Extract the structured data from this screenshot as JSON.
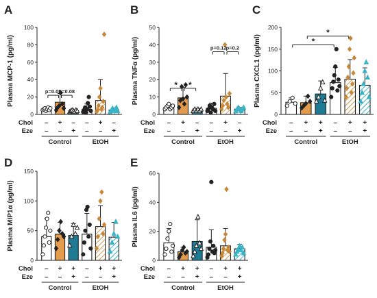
{
  "figure": {
    "row_labels": [
      "Chol",
      "Eze"
    ],
    "group_labels": [
      "Control",
      "EtOH"
    ],
    "colors": {
      "veh_control": "#ffffff",
      "chol": "#e39b4e",
      "chol_eze": "#1f7a93",
      "etoh_veh": "#ffffff",
      "etoh_chol": "#d39c4f",
      "etoh_chol_eze": "#3ab3c6",
      "outline": "#222222"
    },
    "patterns": {
      "etoh_chol": "diagonal-hatch-orange",
      "etoh_chol_eze": "diagonal-hatch-teal"
    }
  },
  "chart_data": [
    {
      "panel": "A",
      "type": "bar",
      "ylabel": "Plasma MCP-1 (pg/ml)",
      "ylim": [
        0,
        100
      ],
      "yticks": [
        0,
        20,
        40,
        60,
        80,
        100
      ],
      "chol": [
        "–",
        "+",
        "–",
        "–",
        "+",
        "–"
      ],
      "eze": [
        "–",
        "–",
        "+",
        "–",
        "–",
        "+"
      ],
      "series": [
        {
          "name": "Control",
          "cond": "veh",
          "mean": 6,
          "err": 2,
          "points": [
            5,
            6,
            7,
            4,
            6,
            8,
            5,
            7
          ]
        },
        {
          "name": "Control",
          "cond": "chol",
          "mean": 14,
          "err": 10,
          "points": [
            5,
            8,
            10,
            25,
            12,
            7
          ]
        },
        {
          "name": "Control",
          "cond": "chol_eze",
          "mean": 4,
          "err": 1,
          "points": [
            3,
            4,
            5,
            4,
            3,
            5,
            4
          ]
        },
        {
          "name": "EtOH",
          "cond": "veh",
          "mean": 6,
          "err": 6,
          "points": [
            3,
            5,
            8,
            2,
            6,
            13,
            20,
            9,
            4
          ]
        },
        {
          "name": "EtOH",
          "cond": "chol",
          "mean": 16,
          "err": 24,
          "points": [
            3,
            5,
            10,
            20,
            30,
            6,
            8,
            15,
            92
          ]
        },
        {
          "name": "EtOH",
          "cond": "chol_eze",
          "mean": 5,
          "err": 2,
          "points": [
            3,
            5,
            7,
            4,
            6,
            8,
            4
          ]
        }
      ],
      "annotations": [
        {
          "text": "p=0.09",
          "from": 0,
          "to": 1,
          "y": 22
        },
        {
          "text": "p=0.08",
          "from": 1,
          "to": 2,
          "y": 22
        }
      ]
    },
    {
      "panel": "B",
      "type": "bar",
      "ylabel": "Plasma TNFα (pg/ml)",
      "ylim": [
        0,
        50
      ],
      "yticks": [
        0,
        10,
        20,
        30,
        40,
        50
      ],
      "chol": [
        "–",
        "+",
        "–",
        "–",
        "+",
        "–"
      ],
      "eze": [
        "–",
        "–",
        "+",
        "–",
        "–",
        "+"
      ],
      "series": [
        {
          "name": "Control",
          "cond": "veh",
          "mean": 4,
          "err": 1.5,
          "points": [
            3,
            4,
            5,
            6,
            3,
            4,
            5
          ]
        },
        {
          "name": "Control",
          "cond": "chol",
          "mean": 9.5,
          "err": 6,
          "points": [
            4,
            8,
            16,
            9,
            6,
            17,
            10
          ]
        },
        {
          "name": "Control",
          "cond": "chol_eze",
          "mean": 2.5,
          "err": 1,
          "points": [
            2,
            3,
            2,
            3,
            2,
            3
          ]
        },
        {
          "name": "EtOH",
          "cond": "veh",
          "mean": 3.5,
          "err": 3,
          "points": [
            2,
            3,
            5,
            1,
            4,
            3,
            6,
            2
          ]
        },
        {
          "name": "EtOH",
          "cond": "chol",
          "mean": 10.5,
          "err": 13,
          "points": [
            3,
            5,
            8,
            40,
            10,
            6,
            4,
            12
          ]
        },
        {
          "name": "EtOH",
          "cond": "chol_eze",
          "mean": 3,
          "err": 1,
          "points": [
            2,
            3,
            4,
            3,
            2,
            3,
            4
          ]
        }
      ],
      "annotations": [
        {
          "text": "*",
          "from": 0,
          "to": 1,
          "y": 15
        },
        {
          "text": "*",
          "from": 1,
          "to": 2,
          "y": 15
        },
        {
          "text": "p=0.12",
          "from": 3,
          "to": 4,
          "y": 36
        },
        {
          "text": "p=0.2",
          "from": 4,
          "to": 5,
          "y": 36
        }
      ]
    },
    {
      "panel": "C",
      "type": "bar",
      "ylabel": "Plasma CXCL1 (pg/ml)",
      "ylim": [
        0,
        200
      ],
      "yticks": [
        0,
        50,
        100,
        150,
        200
      ],
      "chol": [
        "–",
        "+",
        "+",
        "–",
        "+",
        "+"
      ],
      "eze": [
        "–",
        "–",
        "+",
        "–",
        "–",
        "+"
      ],
      "series": [
        {
          "name": "Control",
          "cond": "veh",
          "mean": 28,
          "err": 10,
          "points": [
            20,
            30,
            38,
            25
          ]
        },
        {
          "name": "Control",
          "cond": "chol",
          "mean": 27,
          "err": 15,
          "points": [
            15,
            20,
            25,
            42,
            30
          ]
        },
        {
          "name": "Control",
          "cond": "chol_eze",
          "mean": 47,
          "err": 30,
          "points": [
            30,
            40,
            60,
            74,
            32
          ]
        },
        {
          "name": "EtOH",
          "cond": "veh",
          "mean": 73,
          "err": 35,
          "points": [
            40,
            60,
            75,
            90,
            110,
            150,
            55,
            80,
            65
          ]
        },
        {
          "name": "EtOH",
          "cond": "chol",
          "mean": 81,
          "err": 45,
          "points": [
            40,
            60,
            85,
            110,
            150,
            175,
            50,
            70,
            95,
            130
          ]
        },
        {
          "name": "EtOH",
          "cond": "chol_eze",
          "mean": 67,
          "err": 40,
          "points": [
            30,
            50,
            70,
            100,
            120,
            85,
            40
          ]
        }
      ],
      "annotations": [
        {
          "text": "*",
          "from": 1,
          "to": 4,
          "y": 180
        },
        {
          "text": "*",
          "from": 0,
          "to": 3,
          "y": 160
        }
      ]
    },
    {
      "panel": "D",
      "type": "bar",
      "ylabel": "Plasma MIP1α (pg/ml)",
      "ylim": [
        0,
        150
      ],
      "yticks": [
        0,
        50,
        100,
        150
      ],
      "chol": [
        "–",
        "+",
        "+",
        "–",
        "+",
        "+"
      ],
      "eze": [
        "–",
        "–",
        "+",
        "–",
        "–",
        "+"
      ],
      "series": [
        {
          "name": "Control",
          "cond": "veh",
          "mean": 40,
          "err": 30,
          "points": [
            10,
            25,
            40,
            55,
            70,
            80,
            30,
            50
          ]
        },
        {
          "name": "Control",
          "cond": "chol",
          "mean": 44,
          "err": 20,
          "points": [
            20,
            35,
            50,
            65,
            45,
            40
          ]
        },
        {
          "name": "Control",
          "cond": "chol_eze",
          "mean": 42,
          "err": 20,
          "points": [
            25,
            40,
            60,
            45,
            55
          ]
        },
        {
          "name": "EtOH",
          "cond": "veh",
          "mean": 44,
          "err": 35,
          "points": [
            10,
            30,
            50,
            85,
            90,
            40,
            60,
            20
          ]
        },
        {
          "name": "EtOH",
          "cond": "chol",
          "mean": 57,
          "err": 35,
          "points": [
            20,
            40,
            70,
            100,
            115,
            45,
            60
          ]
        },
        {
          "name": "EtOH",
          "cond": "chol_eze",
          "mean": 39,
          "err": 25,
          "points": [
            15,
            30,
            45,
            65,
            40
          ]
        }
      ],
      "annotations": []
    },
    {
      "panel": "E",
      "type": "bar",
      "ylabel": "Plasma IL6 (pg/ml)",
      "ylim": [
        0,
        60
      ],
      "yticks": [
        0,
        20,
        40,
        60
      ],
      "chol": [
        "–",
        "+",
        "+",
        "–",
        "+",
        "+"
      ],
      "eze": [
        "–",
        "–",
        "+",
        "–",
        "–",
        "+"
      ],
      "series": [
        {
          "name": "Control",
          "cond": "veh",
          "mean": 12,
          "err": 10,
          "points": [
            4,
            8,
            15,
            20,
            25,
            6,
            10
          ]
        },
        {
          "name": "Control",
          "cond": "chol",
          "mean": 6,
          "err": 3,
          "points": [
            2,
            4,
            7,
            9,
            5,
            6
          ]
        },
        {
          "name": "Control",
          "cond": "chol_eze",
          "mean": 13,
          "err": 15,
          "points": [
            3,
            6,
            10,
            30,
            12,
            8
          ]
        },
        {
          "name": "EtOH",
          "cond": "veh",
          "mean": 9,
          "err": 12,
          "points": [
            2,
            4,
            8,
            13,
            54,
            6,
            10,
            5,
            7
          ]
        },
        {
          "name": "EtOH",
          "cond": "chol",
          "mean": 10,
          "err": 12,
          "points": [
            3,
            5,
            8,
            14,
            18,
            49,
            7,
            9,
            6
          ]
        },
        {
          "name": "EtOH",
          "cond": "chol_eze",
          "mean": 8,
          "err": 3,
          "points": [
            4,
            6,
            8,
            10,
            7,
            9,
            5
          ]
        }
      ],
      "annotations": []
    }
  ]
}
